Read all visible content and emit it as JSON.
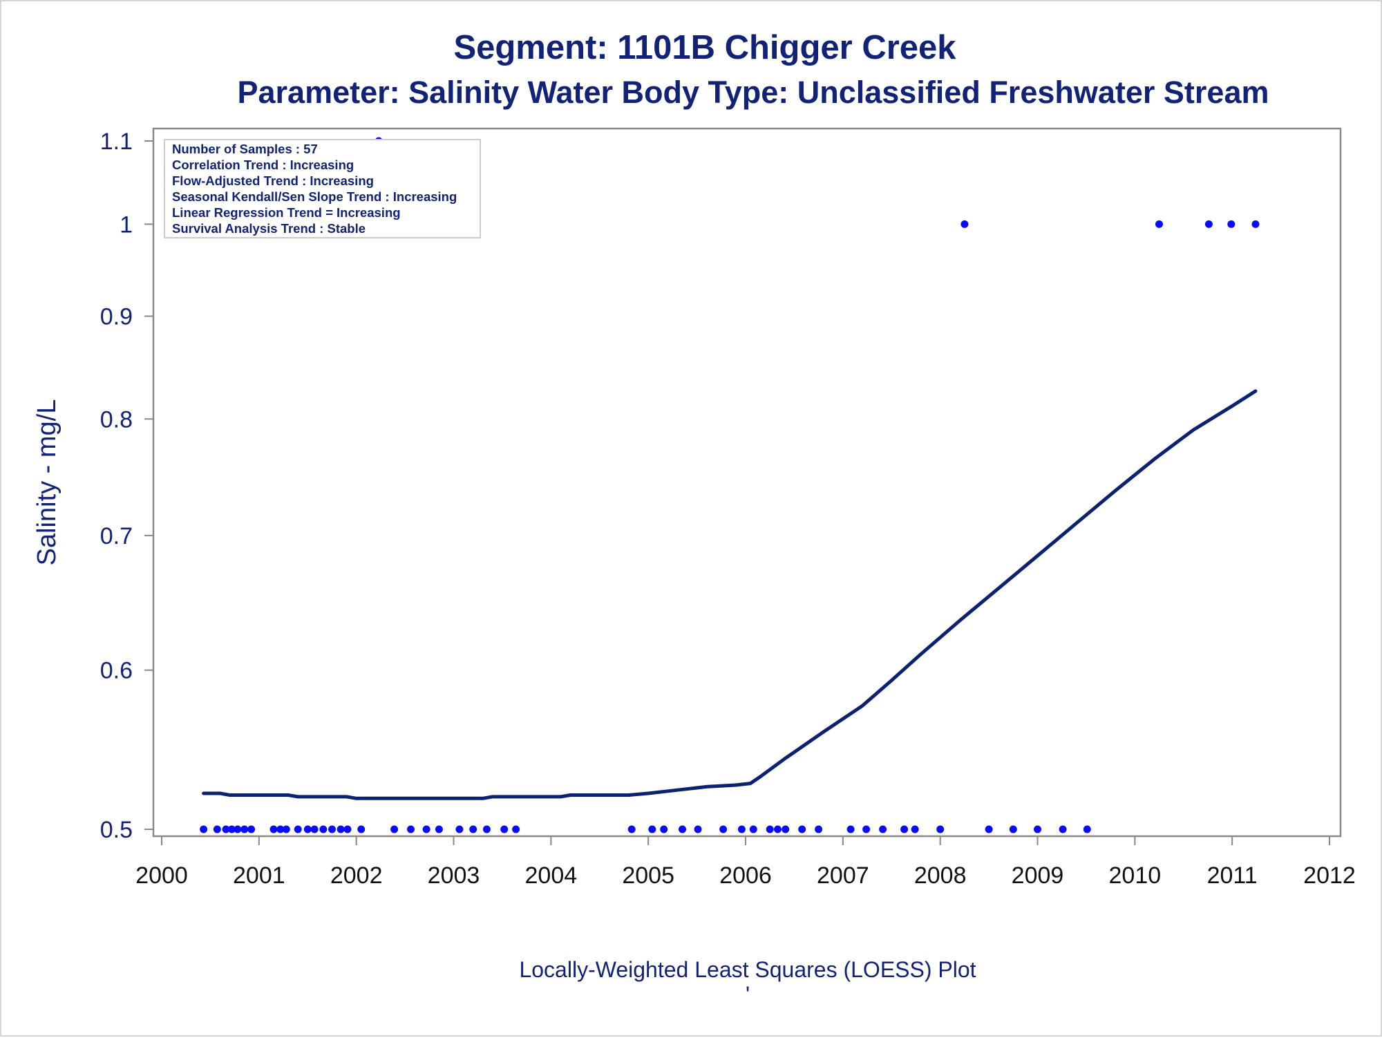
{
  "chart_data": {
    "type": "scatter",
    "title": "Segment: 1101B  Chigger Creek",
    "subtitle": "Parameter: Salinity   Water Body Type: Unclassified Freshwater Stream",
    "ylabel": "Salinity - mg/L",
    "footnote": "Locally-Weighted Least Squares (LOESS) Plot",
    "footnote_mark": "'",
    "xlim": [
      2000,
      2012
    ],
    "ylim": [
      0.5,
      1.1
    ],
    "y_scale": "log",
    "x_ticks": [
      "2000",
      "2001",
      "2002",
      "2003",
      "2004",
      "2005",
      "2006",
      "2007",
      "2008",
      "2009",
      "2010",
      "2011",
      "2012"
    ],
    "y_ticks": [
      "0.5",
      "0.6",
      "0.7",
      "0.8",
      "0.9",
      "1",
      "1.1"
    ],
    "grid": false,
    "legend": "none",
    "colors": {
      "text": "#112277",
      "points": "#0a0aff",
      "loess": "#0a2270",
      "axis": "#888888"
    },
    "stats": [
      "Number of Samples : 57",
      "Correlation Trend : Increasing",
      "Flow-Adjusted Trend : Increasing",
      "Seasonal Kendall/Sen Slope Trend : Increasing",
      "Linear Regression Trend = Increasing",
      "Survival Analysis Trend : Stable"
    ],
    "points": [
      {
        "x": 2000.43,
        "y": 0.5
      },
      {
        "x": 2000.57,
        "y": 0.5
      },
      {
        "x": 2000.66,
        "y": 0.5
      },
      {
        "x": 2000.72,
        "y": 0.5
      },
      {
        "x": 2000.78,
        "y": 0.5
      },
      {
        "x": 2000.85,
        "y": 0.5
      },
      {
        "x": 2000.92,
        "y": 0.5
      },
      {
        "x": 2001.15,
        "y": 0.5
      },
      {
        "x": 2001.22,
        "y": 0.5
      },
      {
        "x": 2001.28,
        "y": 0.5
      },
      {
        "x": 2001.4,
        "y": 0.5
      },
      {
        "x": 2001.5,
        "y": 0.5
      },
      {
        "x": 2001.57,
        "y": 0.5
      },
      {
        "x": 2001.66,
        "y": 0.5
      },
      {
        "x": 2001.75,
        "y": 0.5
      },
      {
        "x": 2001.84,
        "y": 0.5
      },
      {
        "x": 2001.91,
        "y": 0.5
      },
      {
        "x": 2002.05,
        "y": 0.5
      },
      {
        "x": 2002.23,
        "y": 1.1
      },
      {
        "x": 2002.39,
        "y": 0.5
      },
      {
        "x": 2002.56,
        "y": 0.5
      },
      {
        "x": 2002.72,
        "y": 0.5
      },
      {
        "x": 2002.85,
        "y": 0.5
      },
      {
        "x": 2003.06,
        "y": 0.5
      },
      {
        "x": 2003.2,
        "y": 0.5
      },
      {
        "x": 2003.34,
        "y": 0.5
      },
      {
        "x": 2003.52,
        "y": 0.5
      },
      {
        "x": 2003.64,
        "y": 0.5
      },
      {
        "x": 2004.83,
        "y": 0.5
      },
      {
        "x": 2005.04,
        "y": 0.5
      },
      {
        "x": 2005.16,
        "y": 0.5
      },
      {
        "x": 2005.35,
        "y": 0.5
      },
      {
        "x": 2005.51,
        "y": 0.5
      },
      {
        "x": 2005.77,
        "y": 0.5
      },
      {
        "x": 2005.96,
        "y": 0.5
      },
      {
        "x": 2006.08,
        "y": 0.5
      },
      {
        "x": 2006.25,
        "y": 0.5
      },
      {
        "x": 2006.33,
        "y": 0.5
      },
      {
        "x": 2006.41,
        "y": 0.5
      },
      {
        "x": 2006.58,
        "y": 0.5
      },
      {
        "x": 2006.75,
        "y": 0.5
      },
      {
        "x": 2007.08,
        "y": 0.5
      },
      {
        "x": 2007.24,
        "y": 0.5
      },
      {
        "x": 2007.41,
        "y": 0.5
      },
      {
        "x": 2007.63,
        "y": 0.5
      },
      {
        "x": 2007.74,
        "y": 0.5
      },
      {
        "x": 2008.0,
        "y": 0.5
      },
      {
        "x": 2008.25,
        "y": 1.0
      },
      {
        "x": 2008.5,
        "y": 0.5
      },
      {
        "x": 2008.75,
        "y": 0.5
      },
      {
        "x": 2009.0,
        "y": 0.5
      },
      {
        "x": 2009.26,
        "y": 0.5
      },
      {
        "x": 2009.51,
        "y": 0.5
      },
      {
        "x": 2010.25,
        "y": 1.0
      },
      {
        "x": 2010.76,
        "y": 1.0
      },
      {
        "x": 2010.99,
        "y": 1.0
      },
      {
        "x": 2011.24,
        "y": 1.0
      }
    ],
    "loess": [
      {
        "x": 2000.43,
        "y": 0.521
      },
      {
        "x": 2000.6,
        "y": 0.521
      },
      {
        "x": 2000.7,
        "y": 0.52
      },
      {
        "x": 2001.3,
        "y": 0.52
      },
      {
        "x": 2001.4,
        "y": 0.519
      },
      {
        "x": 2001.9,
        "y": 0.519
      },
      {
        "x": 2002.0,
        "y": 0.518
      },
      {
        "x": 2003.3,
        "y": 0.518
      },
      {
        "x": 2003.4,
        "y": 0.519
      },
      {
        "x": 2004.1,
        "y": 0.519
      },
      {
        "x": 2004.2,
        "y": 0.52
      },
      {
        "x": 2004.8,
        "y": 0.52
      },
      {
        "x": 2005.0,
        "y": 0.521
      },
      {
        "x": 2005.3,
        "y": 0.523
      },
      {
        "x": 2005.6,
        "y": 0.525
      },
      {
        "x": 2005.9,
        "y": 0.526
      },
      {
        "x": 2006.05,
        "y": 0.527
      },
      {
        "x": 2006.15,
        "y": 0.531
      },
      {
        "x": 2006.4,
        "y": 0.542
      },
      {
        "x": 2006.8,
        "y": 0.559
      },
      {
        "x": 2007.2,
        "y": 0.576
      },
      {
        "x": 2007.5,
        "y": 0.593
      },
      {
        "x": 2007.8,
        "y": 0.611
      },
      {
        "x": 2008.2,
        "y": 0.635
      },
      {
        "x": 2008.6,
        "y": 0.659
      },
      {
        "x": 2009.0,
        "y": 0.684
      },
      {
        "x": 2009.4,
        "y": 0.71
      },
      {
        "x": 2009.8,
        "y": 0.737
      },
      {
        "x": 2010.2,
        "y": 0.764
      },
      {
        "x": 2010.6,
        "y": 0.79
      },
      {
        "x": 2011.0,
        "y": 0.812
      },
      {
        "x": 2011.24,
        "y": 0.826
      }
    ]
  }
}
